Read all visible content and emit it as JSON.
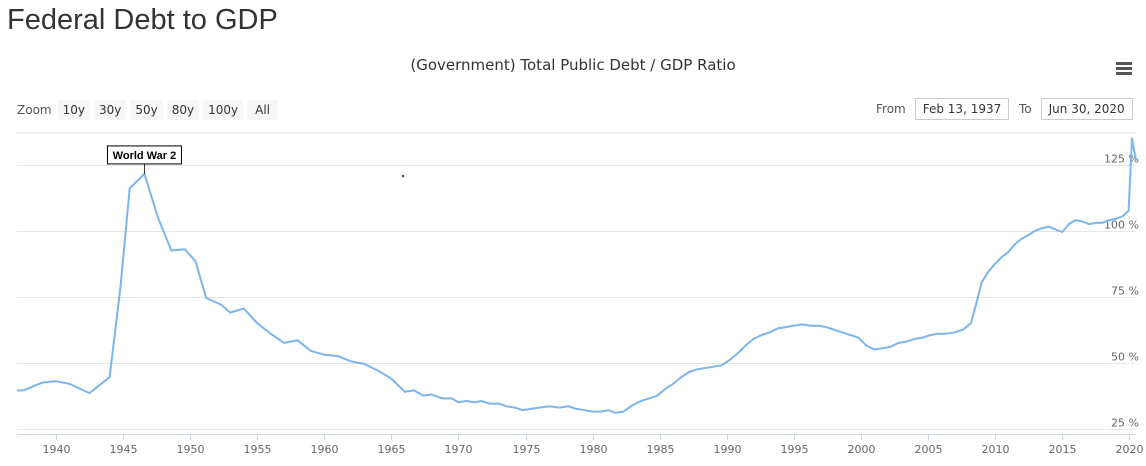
{
  "page_title": "Federal Debt to GDP",
  "menu_icon": "hamburger-menu-icon",
  "zoom": {
    "label": "Zoom",
    "buttons": [
      "10y",
      "30y",
      "50y",
      "80y",
      "100y",
      "All"
    ]
  },
  "range": {
    "from_label": "From",
    "from_value": "Feb 13, 1937",
    "to_label": "To",
    "to_value": "Jun 30, 2020"
  },
  "colors": {
    "series": "#7cb5ec",
    "grid": "#e6e6e6"
  },
  "chart_data": {
    "type": "line",
    "title": "(Government) Total Public Debt / GDP Ratio",
    "xlabel": "",
    "ylabel": "",
    "xlim": [
      1937.1,
      2020.5
    ],
    "ylim": [
      23,
      137
    ],
    "x_ticks": [
      1940,
      1945,
      1950,
      1955,
      1960,
      1965,
      1970,
      1975,
      1980,
      1985,
      1990,
      1995,
      2000,
      2005,
      2010,
      2015,
      2020
    ],
    "y_ticks": [
      25,
      50,
      75,
      100,
      125
    ],
    "y_tick_suffix": " %",
    "grid": true,
    "legend": "none",
    "annotation": {
      "text": "World War 2",
      "x": 1946.6
    },
    "series": [
      {
        "name": "",
        "x": [
          1937.1,
          1937.6,
          1938.5,
          1939.0,
          1940.0,
          1941.0,
          1942.5,
          1943.0,
          1944.0,
          1944.8,
          1945.5,
          1946.6,
          1947.6,
          1948.6,
          1949.6,
          1950.4,
          1951.2,
          1952.3,
          1953.0,
          1954.0,
          1955.0,
          1956.0,
          1957.0,
          1958.0,
          1959.0,
          1960.0,
          1961.0,
          1962.0,
          1963.0,
          1964.0,
          1965.0,
          1966.0,
          1966.7,
          1967.4,
          1968.0,
          1968.8,
          1969.5,
          1970.0,
          1970.6,
          1971.2,
          1971.7,
          1972.3,
          1973.0,
          1973.6,
          1974.2,
          1974.8,
          1975.4,
          1976.0,
          1976.8,
          1977.5,
          1978.2,
          1978.8,
          1979.4,
          1980.0,
          1980.6,
          1981.2,
          1981.7,
          1982.3,
          1983.0,
          1983.6,
          1984.2,
          1984.8,
          1985.4,
          1986.0,
          1986.6,
          1987.2,
          1987.8,
          1988.4,
          1989.0,
          1989.6,
          1990.2,
          1990.8,
          1991.4,
          1992.0,
          1992.6,
          1993.2,
          1993.8,
          1994.4,
          1995.0,
          1995.6,
          1996.2,
          1996.8,
          1997.4,
          1998.0,
          1998.6,
          1999.2,
          1999.8,
          2000.4,
          2001.0,
          2001.6,
          2002.2,
          2002.8,
          2003.4,
          2004.0,
          2004.6,
          2005.2,
          2005.8,
          2006.4,
          2007.0,
          2007.6,
          2008.2,
          2008.7,
          2009.0,
          2009.5,
          2010.0,
          2010.5,
          2011.0,
          2011.5,
          2012.0,
          2012.5,
          2013.0,
          2013.5,
          2014.0,
          2014.5,
          2015.0,
          2015.5,
          2016.0,
          2016.5,
          2017.0,
          2017.5,
          2018.0,
          2018.5,
          2019.0,
          2019.5,
          2019.95,
          2020.2,
          2020.5
        ],
        "values": [
          39.5,
          39.5,
          41.5,
          42.5,
          43.0,
          42.0,
          38.5,
          40.5,
          44.5,
          78.0,
          116.0,
          121.5,
          105.0,
          92.5,
          93.0,
          88.5,
          74.5,
          72.0,
          69.0,
          70.5,
          65.0,
          61.0,
          57.5,
          58.5,
          54.5,
          53.0,
          52.5,
          50.5,
          49.5,
          47.0,
          44.0,
          39.0,
          39.5,
          37.5,
          38.0,
          36.5,
          36.5,
          35.0,
          35.5,
          35.0,
          35.5,
          34.5,
          34.5,
          33.5,
          33.0,
          32.0,
          32.5,
          33.0,
          33.5,
          33.0,
          33.5,
          32.5,
          32.0,
          31.5,
          31.5,
          32.0,
          31.0,
          31.5,
          34.0,
          35.5,
          36.5,
          37.5,
          40.0,
          42.0,
          44.5,
          46.5,
          47.5,
          48.0,
          48.5,
          49.0,
          51.0,
          53.5,
          56.5,
          59.0,
          60.5,
          61.5,
          63.0,
          63.5,
          64.0,
          64.5,
          64.0,
          64.0,
          63.5,
          62.5,
          61.5,
          60.5,
          59.5,
          56.5,
          55.0,
          55.5,
          56.0,
          57.5,
          58.0,
          59.0,
          59.5,
          60.5,
          61.0,
          61.0,
          61.5,
          62.5,
          65.0,
          74.5,
          80.5,
          84.5,
          87.5,
          90.0,
          92.0,
          95.0,
          97.0,
          98.5,
          100.0,
          101.0,
          101.5,
          100.5,
          99.5,
          102.5,
          104.0,
          103.5,
          102.5,
          103.0,
          103.0,
          104.0,
          104.5,
          105.5,
          107.5,
          135.0,
          126.5
        ]
      }
    ]
  }
}
